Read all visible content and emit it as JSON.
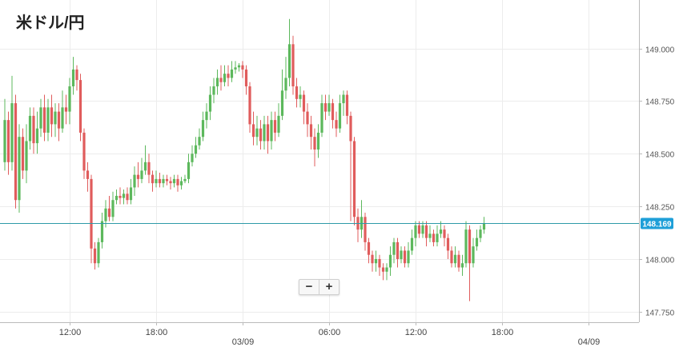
{
  "title": "米ドル/円",
  "zoom": {
    "minus_label": "−",
    "plus_label": "+"
  },
  "colors": {
    "up": "#5cb85c",
    "down": "#e05c5c",
    "current_line": "#2e9aa8",
    "current_badge_bg": "#1e9fd8",
    "grid": "#ececec",
    "axis": "#bbbbbb"
  },
  "chart_data": {
    "type": "candlestick",
    "title": "米ドル/円",
    "ylim": [
      147.7,
      149.23
    ],
    "y_ticks": [
      {
        "value": 149.0,
        "label": "149.000"
      },
      {
        "value": 148.75,
        "label": "148.750"
      },
      {
        "value": 148.5,
        "label": "148.500"
      },
      {
        "value": 148.25,
        "label": "148.250"
      },
      {
        "value": 148.0,
        "label": "148.000"
      },
      {
        "value": 147.75,
        "label": "147.750"
      }
    ],
    "x_ticks": [
      {
        "index": 18,
        "label": "12:00"
      },
      {
        "index": 42,
        "label": "18:00"
      },
      {
        "index": 66,
        "label": "03/09",
        "date_marker": true
      },
      {
        "index": 90,
        "label": "06:00"
      },
      {
        "index": 114,
        "label": "12:00"
      },
      {
        "index": 138,
        "label": "18:00"
      },
      {
        "index": 162,
        "label": "04/09",
        "date_marker": true
      }
    ],
    "current_price": {
      "value": 148.169,
      "label": "148.169"
    },
    "grid": true,
    "candles": [
      [
        148.46,
        148.66,
        148.76,
        148.42
      ],
      [
        148.66,
        148.46,
        148.7,
        148.4
      ],
      [
        148.46,
        148.74,
        148.87,
        148.42
      ],
      [
        148.74,
        148.28,
        148.78,
        148.24
      ],
      [
        148.28,
        148.58,
        148.64,
        148.22
      ],
      [
        148.58,
        148.42,
        148.62,
        148.38
      ],
      [
        148.42,
        148.56,
        148.64,
        148.36
      ],
      [
        148.56,
        148.68,
        148.72,
        148.52
      ],
      [
        148.68,
        148.55,
        148.72,
        148.5
      ],
      [
        148.55,
        148.62,
        148.7,
        148.5
      ],
      [
        148.62,
        148.72,
        148.76,
        148.58
      ],
      [
        148.72,
        148.6,
        148.78,
        148.56
      ],
      [
        148.6,
        148.72,
        148.76,
        148.56
      ],
      [
        148.72,
        148.64,
        148.78,
        148.58
      ],
      [
        148.64,
        148.7,
        148.74,
        148.58
      ],
      [
        148.7,
        148.62,
        148.74,
        148.56
      ],
      [
        148.62,
        148.72,
        148.8,
        148.6
      ],
      [
        148.72,
        148.7,
        148.78,
        148.64
      ],
      [
        148.7,
        148.82,
        148.86,
        148.64
      ],
      [
        148.82,
        148.9,
        148.96,
        148.78
      ],
      [
        148.9,
        148.85,
        148.92,
        148.8
      ],
      [
        148.85,
        148.6,
        148.88,
        148.56
      ],
      [
        148.6,
        148.42,
        148.62,
        148.38
      ],
      [
        148.42,
        148.38,
        148.46,
        148.32
      ],
      [
        148.38,
        148.05,
        148.4,
        147.98
      ],
      [
        148.05,
        147.98,
        148.08,
        147.95
      ],
      [
        147.98,
        148.08,
        148.1,
        147.96
      ],
      [
        148.08,
        148.18,
        148.22,
        148.05
      ],
      [
        148.18,
        148.24,
        148.28,
        148.15
      ],
      [
        148.24,
        148.2,
        148.3,
        148.18
      ],
      [
        148.2,
        148.28,
        148.32,
        148.18
      ],
      [
        148.28,
        148.3,
        148.33,
        148.26
      ],
      [
        148.3,
        148.29,
        148.34,
        148.26
      ],
      [
        148.29,
        148.31,
        148.33,
        148.26
      ],
      [
        148.31,
        148.28,
        148.34,
        148.26
      ],
      [
        148.28,
        148.34,
        148.38,
        148.26
      ],
      [
        148.34,
        148.4,
        148.44,
        148.3
      ],
      [
        148.4,
        148.38,
        148.46,
        148.34
      ],
      [
        148.38,
        148.42,
        148.48,
        148.36
      ],
      [
        148.42,
        148.46,
        148.54,
        148.4
      ],
      [
        148.46,
        148.4,
        148.5,
        148.36
      ],
      [
        148.4,
        148.36,
        148.42,
        148.32
      ],
      [
        148.36,
        148.38,
        148.42,
        148.34
      ],
      [
        148.38,
        148.36,
        148.41,
        148.34
      ],
      [
        148.36,
        148.38,
        148.4,
        148.34
      ],
      [
        148.38,
        148.37,
        148.4,
        148.35
      ],
      [
        148.37,
        148.36,
        148.39,
        148.33
      ],
      [
        148.36,
        148.38,
        148.4,
        148.34
      ],
      [
        148.38,
        148.35,
        148.4,
        148.32
      ],
      [
        148.35,
        148.37,
        148.39,
        148.33
      ],
      [
        148.37,
        148.38,
        148.4,
        148.36
      ],
      [
        148.38,
        148.46,
        148.5,
        148.36
      ],
      [
        148.46,
        148.5,
        148.54,
        148.44
      ],
      [
        148.5,
        148.54,
        148.58,
        148.48
      ],
      [
        148.54,
        148.58,
        148.62,
        148.52
      ],
      [
        148.58,
        148.66,
        148.7,
        148.56
      ],
      [
        148.66,
        148.7,
        148.74,
        148.62
      ],
      [
        148.7,
        148.78,
        148.82,
        148.66
      ],
      [
        148.78,
        148.82,
        148.86,
        148.74
      ],
      [
        148.82,
        148.86,
        148.9,
        148.78
      ],
      [
        148.86,
        148.84,
        148.92,
        148.8
      ],
      [
        148.84,
        148.88,
        148.92,
        148.82
      ],
      [
        148.88,
        148.86,
        148.92,
        148.82
      ],
      [
        148.86,
        148.9,
        148.94,
        148.84
      ],
      [
        148.9,
        148.91,
        148.94,
        148.88
      ],
      [
        148.91,
        148.92,
        148.93,
        148.89
      ],
      [
        148.92,
        148.9,
        148.94,
        148.86
      ],
      [
        148.9,
        148.82,
        148.92,
        148.78
      ],
      [
        148.82,
        148.64,
        148.84,
        148.6
      ],
      [
        148.64,
        148.58,
        148.7,
        148.54
      ],
      [
        148.58,
        148.62,
        148.68,
        148.54
      ],
      [
        148.62,
        148.56,
        148.66,
        148.52
      ],
      [
        148.56,
        148.64,
        148.68,
        148.52
      ],
      [
        148.64,
        148.56,
        148.68,
        148.5
      ],
      [
        148.56,
        148.66,
        148.7,
        148.52
      ],
      [
        148.66,
        148.6,
        148.7,
        148.56
      ],
      [
        148.6,
        148.68,
        148.74,
        148.58
      ],
      [
        148.68,
        148.8,
        148.9,
        148.66
      ],
      [
        148.8,
        148.86,
        148.96,
        148.76
      ],
      [
        148.86,
        149.02,
        149.14,
        148.82
      ],
      [
        149.02,
        148.82,
        149.06,
        148.78
      ],
      [
        148.82,
        148.76,
        148.86,
        148.72
      ],
      [
        148.76,
        148.78,
        148.82,
        148.72
      ],
      [
        148.78,
        148.7,
        148.8,
        148.64
      ],
      [
        148.7,
        148.64,
        148.74,
        148.58
      ],
      [
        148.64,
        148.58,
        148.68,
        148.52
      ],
      [
        148.58,
        148.52,
        148.62,
        148.44
      ],
      [
        148.52,
        148.6,
        148.64,
        148.48
      ],
      [
        148.6,
        148.74,
        148.78,
        148.58
      ],
      [
        148.74,
        148.7,
        148.78,
        148.66
      ],
      [
        148.7,
        148.74,
        148.78,
        148.68
      ],
      [
        148.74,
        148.66,
        148.76,
        148.62
      ],
      [
        148.66,
        148.62,
        148.7,
        148.58
      ],
      [
        148.62,
        148.74,
        148.78,
        148.6
      ],
      [
        148.74,
        148.78,
        148.8,
        148.68
      ],
      [
        148.78,
        148.68,
        148.8,
        148.64
      ],
      [
        148.68,
        148.56,
        148.7,
        148.18
      ],
      [
        148.56,
        148.2,
        148.58,
        148.16
      ],
      [
        148.2,
        148.14,
        148.24,
        148.08
      ],
      [
        148.14,
        148.2,
        148.28,
        148.1
      ],
      [
        148.2,
        148.08,
        148.22,
        148.04
      ],
      [
        148.08,
        148.02,
        148.1,
        147.98
      ],
      [
        148.02,
        147.98,
        148.04,
        147.94
      ],
      [
        147.98,
        148.0,
        148.04,
        147.94
      ],
      [
        148.0,
        147.96,
        148.02,
        147.92
      ],
      [
        147.96,
        147.94,
        147.98,
        147.9
      ],
      [
        147.94,
        147.96,
        147.98,
        147.9
      ],
      [
        147.96,
        148.02,
        148.06,
        147.92
      ],
      [
        148.02,
        148.08,
        148.1,
        147.98
      ],
      [
        148.08,
        148.0,
        148.1,
        147.96
      ],
      [
        148.0,
        148.04,
        148.06,
        147.98
      ],
      [
        148.04,
        147.98,
        148.06,
        147.96
      ],
      [
        147.98,
        148.04,
        148.08,
        147.96
      ],
      [
        148.04,
        148.1,
        148.14,
        148.02
      ],
      [
        148.1,
        148.16,
        148.18,
        148.06
      ],
      [
        148.16,
        148.12,
        148.18,
        148.1
      ],
      [
        148.12,
        148.16,
        148.18,
        148.1
      ],
      [
        148.16,
        148.1,
        148.18,
        148.06
      ],
      [
        148.1,
        148.12,
        148.16,
        148.08
      ],
      [
        148.12,
        148.08,
        148.14,
        148.06
      ],
      [
        148.08,
        148.12,
        148.16,
        148.06
      ],
      [
        148.12,
        148.14,
        148.18,
        148.1
      ],
      [
        148.14,
        148.1,
        148.16,
        148.06
      ],
      [
        148.1,
        148.04,
        148.12,
        148.0
      ],
      [
        148.04,
        147.98,
        148.06,
        147.96
      ],
      [
        147.98,
        148.02,
        148.06,
        147.96
      ],
      [
        148.02,
        147.96,
        148.04,
        147.94
      ],
      [
        147.96,
        147.98,
        148.02,
        147.92
      ],
      [
        147.98,
        148.14,
        148.18,
        147.96
      ],
      [
        148.14,
        147.98,
        148.16,
        147.8
      ],
      [
        147.98,
        148.06,
        148.1,
        147.96
      ],
      [
        148.06,
        148.1,
        148.14,
        148.04
      ],
      [
        148.1,
        148.14,
        148.16,
        148.08
      ],
      [
        148.14,
        148.17,
        148.2,
        148.12
      ]
    ]
  }
}
